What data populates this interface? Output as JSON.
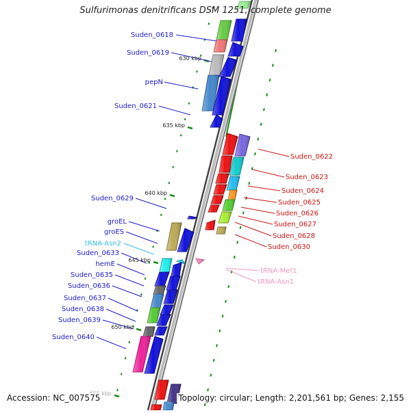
{
  "title": "Sulfurimonas denitrificans DSM 1251, complete genome",
  "accession_text": "Accession: NC_007575",
  "stats_text": "Topology: circular; Length: 2,201,561 bp; Genes: 2,155",
  "colors": {
    "left_label": "#1a1acc",
    "right_label": "#cc1111",
    "trna_left_label": "#33bbee",
    "trna_right_label": "#ee99bb",
    "backbone": "#555555",
    "tick": "#1a8a1a"
  },
  "kbp_ticks": [
    "630 kbp",
    "635 kbp",
    "640 kbp",
    "645 kbp",
    "650 kbp",
    "655 kbp"
  ],
  "left_labels": [
    "Suden_0618",
    "Suden_0619",
    "pepN",
    "Suden_0621",
    "Suden_0629",
    "groEL",
    "groES",
    "tRNA-Asn2",
    "Suden_0633",
    "hemE",
    "Suden_0635",
    "Suden_0636",
    "Suden_0637",
    "Suden_0638",
    "Suden_0639",
    "Suden_0640"
  ],
  "right_labels": [
    "Suden_0622",
    "Suden_0623",
    "Suden_0624",
    "Suden_0625",
    "Suden_0626",
    "Suden_0627",
    "Suden_0628",
    "Suden_0630",
    "tRNA-Met1",
    "tRNA-Asn1"
  ]
}
